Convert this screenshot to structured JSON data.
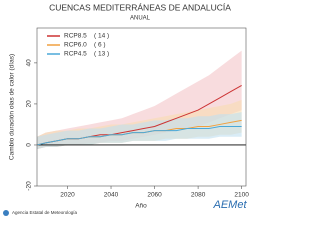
{
  "chart_data": {
    "type": "line",
    "title": "CUENCAS MEDITERRÁNEAS DE ANDALUCÍA",
    "subtitle": "ANUAL",
    "y_label": "Cambio duración olas de calor (días)",
    "x_label": "Año",
    "x": [
      2006,
      2010,
      2015,
      2020,
      2025,
      2030,
      2035,
      2040,
      2045,
      2050,
      2055,
      2060,
      2065,
      2070,
      2075,
      2080,
      2085,
      2090,
      2095,
      2100
    ],
    "series": [
      {
        "name": "RCP8.5",
        "models": "( 14 )",
        "color": "#cc3333",
        "band_color": "#f4c4c8",
        "values": [
          0,
          1,
          2,
          3,
          3,
          4,
          5,
          5,
          6,
          7,
          8,
          9,
          11,
          13,
          15,
          17,
          20,
          23,
          26,
          29
        ],
        "upper": [
          4,
          6,
          7,
          8,
          9,
          10,
          11,
          12,
          13,
          15,
          17,
          19,
          22,
          25,
          28,
          31,
          34,
          38,
          42,
          46
        ],
        "lower": [
          -2,
          -1,
          -1,
          0,
          0,
          1,
          1,
          2,
          2,
          3,
          4,
          5,
          6,
          7,
          8,
          9,
          11,
          13,
          15,
          17
        ]
      },
      {
        "name": "RCP6.0",
        "models": "( 6 )",
        "color": "#f0a040",
        "band_color": "#f8dcb0",
        "values": [
          0,
          1,
          2,
          3,
          3,
          4,
          4,
          5,
          5,
          6,
          6,
          7,
          7,
          8,
          8,
          9,
          9,
          10,
          11,
          12
        ],
        "upper": [
          4,
          6,
          7,
          7,
          8,
          8,
          9,
          10,
          10,
          11,
          12,
          13,
          14,
          15,
          16,
          17,
          18,
          19,
          20,
          22
        ],
        "lower": [
          -2,
          -1,
          -1,
          0,
          0,
          0,
          1,
          1,
          1,
          2,
          2,
          2,
          3,
          3,
          3,
          4,
          4,
          5,
          5,
          6
        ]
      },
      {
        "name": "RCP4.5",
        "models": "( 13 )",
        "color": "#4aa8d8",
        "band_color": "#bfe0f0",
        "values": [
          0,
          1,
          2,
          3,
          3,
          4,
          4,
          5,
          5,
          6,
          6,
          7,
          7,
          7,
          8,
          8,
          8,
          9,
          9,
          9
        ],
        "upper": [
          4,
          5,
          6,
          7,
          7,
          8,
          8,
          9,
          10,
          10,
          11,
          12,
          12,
          13,
          13,
          14,
          14,
          15,
          15,
          16
        ],
        "lower": [
          -2,
          -1,
          -1,
          0,
          0,
          0,
          1,
          1,
          1,
          2,
          2,
          2,
          2,
          3,
          3,
          3,
          3,
          4,
          4,
          4
        ]
      }
    ],
    "xlim": [
      2006,
      2102
    ],
    "ylim": [
      -20,
      57
    ],
    "xticks": [
      2020,
      2040,
      2060,
      2080,
      2100
    ],
    "yticks": [
      -20,
      0,
      20,
      40
    ],
    "zero_line": true,
    "footer": "Agencia Estatal de Meteorología",
    "logo": "AEMet"
  }
}
